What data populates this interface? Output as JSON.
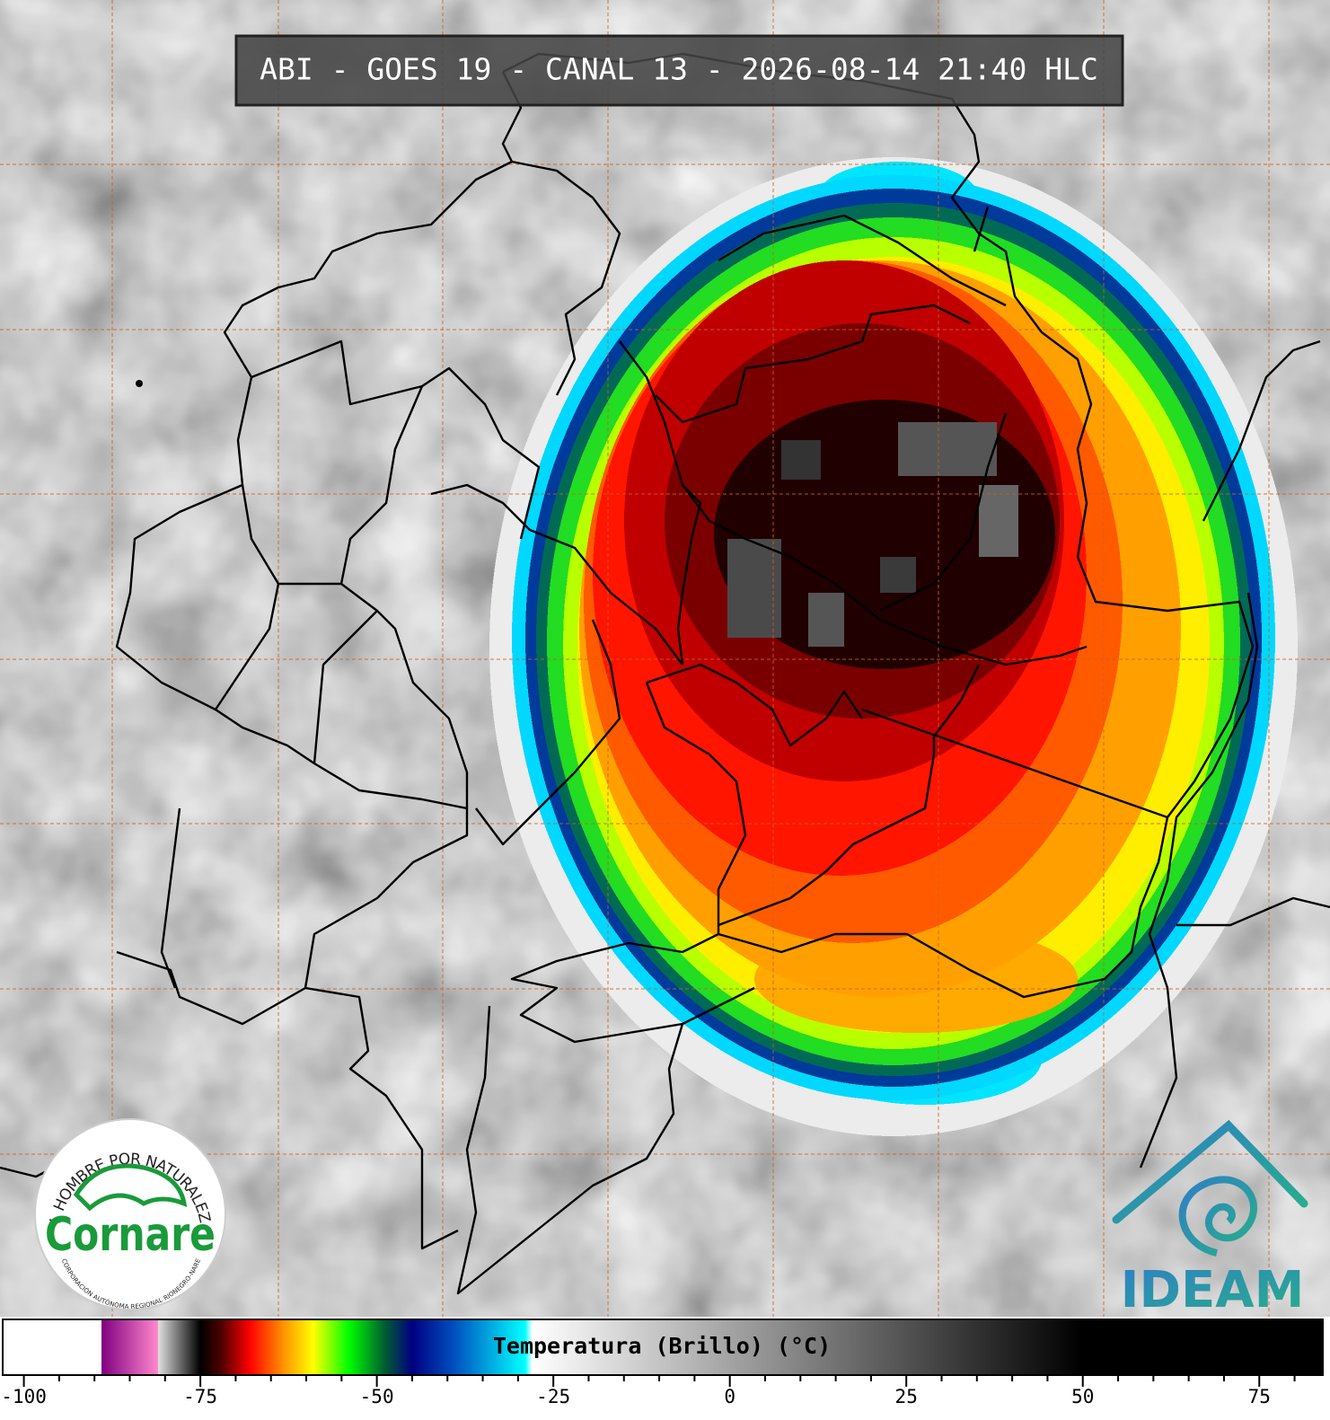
{
  "header": {
    "title": "ABI - GOES 19 - CANAL 13 - 2026-08-14 21:40 HLC"
  },
  "logos": {
    "cornare": {
      "name": "Cornare",
      "motto": "EL HOMBRE POR NATURALEZA",
      "subtitle": "CORPORACIÓN AUTÓNOMA REGIONAL RIONEGRO-NARE"
    },
    "ideam": {
      "name": "IDEAM"
    }
  },
  "colorbar": {
    "label": "Temperatura (Brillo) (°C)",
    "lim": [
      -103,
      84
    ],
    "ticks": [
      -100,
      -75,
      -50,
      -25,
      0,
      25,
      50,
      75
    ],
    "minor_ticks": [
      -95,
      -90,
      -85,
      -80,
      -70,
      -65,
      -60,
      -55,
      -45,
      -40,
      -35,
      -30,
      -20,
      -15,
      -10,
      -5,
      5,
      10,
      15,
      20,
      30,
      35,
      40,
      45,
      55,
      60,
      65,
      70,
      80
    ],
    "stops": [
      {
        "value": -103,
        "color": "#ffffff"
      },
      {
        "value": -89,
        "color": "#ffffff"
      },
      {
        "value": -89,
        "color": "#800080"
      },
      {
        "value": -81,
        "color": "#ff88cc"
      },
      {
        "value": -81,
        "color": "#e0e0e0"
      },
      {
        "value": -75,
        "color": "#000000"
      },
      {
        "value": -72,
        "color": "#500000"
      },
      {
        "value": -68,
        "color": "#ff0000"
      },
      {
        "value": -63,
        "color": "#ff9900"
      },
      {
        "value": -59,
        "color": "#ffff00"
      },
      {
        "value": -54,
        "color": "#00ff00"
      },
      {
        "value": -49,
        "color": "#006030"
      },
      {
        "value": -45,
        "color": "#000080"
      },
      {
        "value": -39,
        "color": "#0050c0"
      },
      {
        "value": -29,
        "color": "#00ffff"
      },
      {
        "value": -28,
        "color": "#ffffff"
      },
      {
        "value": 50,
        "color": "#000000"
      },
      {
        "value": 84,
        "color": "#000000"
      }
    ]
  }
}
